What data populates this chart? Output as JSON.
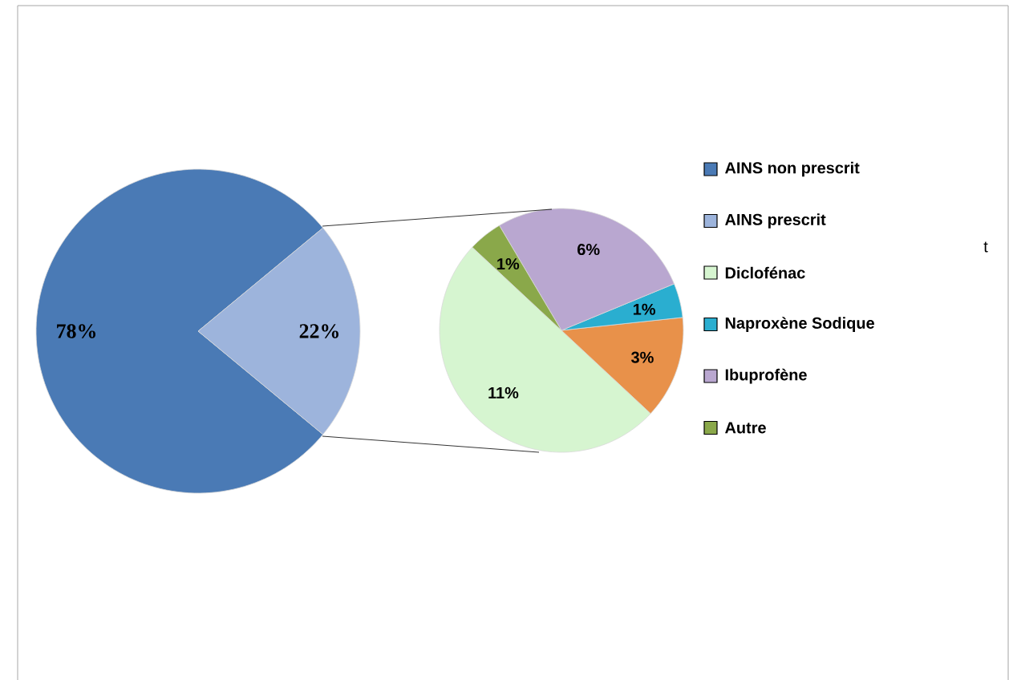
{
  "chart_data": [
    {
      "type": "pie",
      "categories": [
        "AINS non prescrit",
        "AINS prescrit"
      ],
      "values": [
        78,
        22
      ],
      "colors": [
        "#4a7ab5",
        "#9db4dc"
      ],
      "value_labels": [
        "78%",
        "22%"
      ],
      "legend": "right"
    },
    {
      "type": "pie",
      "categories": [
        "Diclofénac",
        null,
        "Naproxène Sodique",
        "Ibuprofène",
        "Autre"
      ],
      "values": [
        11,
        3,
        1,
        6,
        1
      ],
      "colors": [
        "#d6f5d0",
        "#e8914a",
        "#2aaed0",
        "#b9a7d0",
        "#8aa84a"
      ],
      "value_labels": [
        "11%",
        "3%",
        "1%",
        "6%",
        "1%"
      ],
      "legend": "right",
      "annotations": [
        "t"
      ]
    }
  ]
}
